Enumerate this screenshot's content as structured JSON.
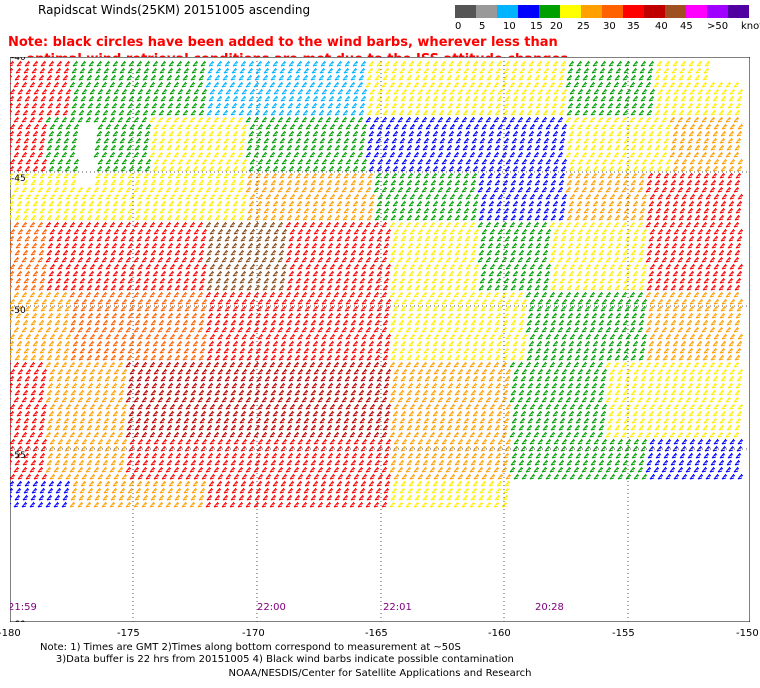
{
  "title": "Rapidscat Winds(25KM) 20151005 ascending",
  "legend": {
    "labels": [
      "0",
      "5",
      "10",
      "15",
      "20",
      "25",
      "30",
      "35",
      "40",
      "45",
      ">50"
    ],
    "unit": "knots",
    "colors": [
      "#555555",
      "#999999",
      "#00b4ff",
      "#0000ff",
      "#00a000",
      "#ffff00",
      "#ffa000",
      "#ff6000",
      "#ff0000",
      "#c00000",
      "#a05020",
      "#ff00ff",
      "#a000ff",
      "#5000a0"
    ]
  },
  "note": {
    "line1": "Note: black circles have been added to the wind barbs, wherever less than",
    "line2": "optimal wind retrieval conditions are met due to the ISS attitude changes"
  },
  "axes": {
    "lat_labels": [
      "-40",
      "-45",
      "-50",
      "-55",
      "-60"
    ],
    "lon_labels": [
      "-180",
      "-175",
      "-170",
      "-165",
      "-160",
      "-155",
      "-150"
    ]
  },
  "times": [
    "21:59",
    "22:00",
    "22:01",
    "20:28"
  ],
  "footnote": {
    "line1": "Note: 1) Times are GMT 2)Times along bottom correspond to measurement at ~50S",
    "line2": "3)Data buffer is 22 hrs from 20151005 4) Black wind barbs indicate possible contamination"
  },
  "credit": "NOAA/NESDIS/Center for Satellite Applications and Research"
}
